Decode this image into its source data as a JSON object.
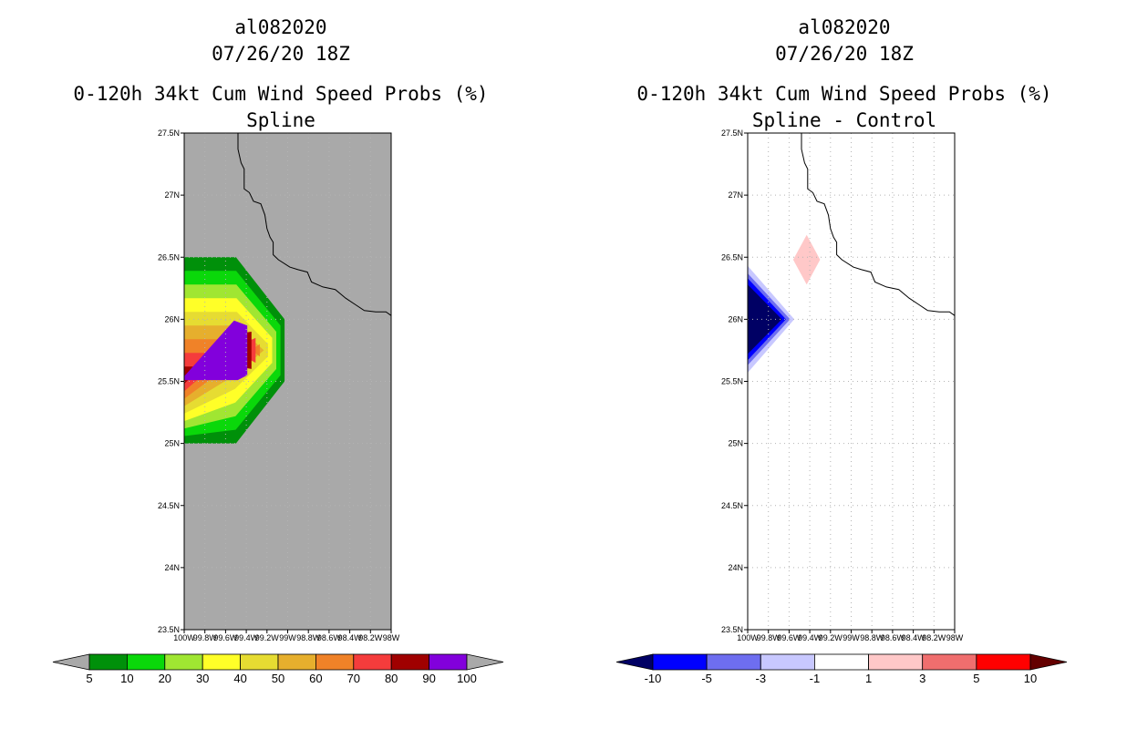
{
  "chart_data": [
    {
      "type": "heatmap",
      "panel": "left",
      "title_lines": [
        "al082020",
        "07/26/20 18Z",
        "0-120h 34kt Cum Wind Speed Probs (%)",
        "Spline"
      ],
      "xlim": [
        -100.0,
        -98.0
      ],
      "ylim": [
        23.5,
        27.5
      ],
      "x_tick_labels": [
        "100W",
        "99.8W",
        "99.6W",
        "99.4W",
        "99.2W",
        "99W",
        "98.8W",
        "98.6W",
        "98.4W",
        "98.2W",
        "98W"
      ],
      "y_tick_labels": [
        "23.5N",
        "24N",
        "24.5N",
        "25N",
        "25.5N",
        "26N",
        "26.5N",
        "27N",
        "27.5N"
      ],
      "background_color": "#a9a9a9",
      "grid": true,
      "colorbar": {
        "labels": [
          "5",
          "10",
          "20",
          "30",
          "40",
          "50",
          "60",
          "70",
          "80",
          "90",
          "100"
        ],
        "colors": [
          "#a9a9a9",
          "#00900a",
          "#0ad80a",
          "#a0e632",
          "#ffff28",
          "#e6dc32",
          "#e6af2d",
          "#f08228",
          "#f53c3c",
          "#a00000",
          "#8200dc",
          "#a9a9a9"
        ]
      },
      "field": {
        "outer_corners_lon_lat": [
          [
            -100.0,
            26.5
          ],
          [
            -99.5,
            26.5
          ],
          [
            -99.03,
            26.0
          ],
          [
            -99.03,
            25.5
          ],
          [
            -99.5,
            25.0
          ],
          [
            -100.0,
            25.0
          ]
        ],
        "inner_corners_lon_lat": [
          [
            -100.0,
            25.4
          ],
          [
            -99.48,
            25.4
          ],
          [
            -99.43,
            25.5
          ],
          [
            -99.43,
            26.0
          ],
          [
            -99.52,
            26.1
          ],
          [
            -100.0,
            25.6
          ]
        ],
        "levels": [
          10,
          20,
          30,
          40,
          50,
          60,
          70,
          80,
          90,
          100
        ]
      }
    },
    {
      "type": "heatmap",
      "panel": "right",
      "title_lines": [
        "al082020",
        "07/26/20 18Z",
        "0-120h 34kt Cum Wind Speed Probs (%)",
        "Spline - Control"
      ],
      "xlim": [
        -100.0,
        -98.0
      ],
      "ylim": [
        23.5,
        27.5
      ],
      "x_tick_labels": [
        "100W",
        "99.8W",
        "99.6W",
        "99.4W",
        "99.2W",
        "99W",
        "98.8W",
        "98.6W",
        "98.4W",
        "98.2W",
        "98W"
      ],
      "y_tick_labels": [
        "23.5N",
        "24N",
        "24.5N",
        "25N",
        "25.5N",
        "26N",
        "26.5N",
        "27N",
        "27.5N"
      ],
      "background_color": "#ffffff",
      "grid": true,
      "colorbar": {
        "labels": [
          "-10",
          "-5",
          "-3",
          "-1",
          "1",
          "3",
          "5",
          "10"
        ],
        "colors": [
          "#000064",
          "#0000ff",
          "#6e6ef0",
          "#c8c8ff",
          "#ffffff",
          "#ffc8c8",
          "#f06e6e",
          "#ff0000",
          "#640000"
        ]
      },
      "negative_wedge": {
        "apex_lon_lat": [
          -99.55,
          26.0
        ],
        "half_height_deg": [
          0.43,
          0.37,
          0.33,
          0.28
        ],
        "colors": [
          "#c8c8ff",
          "#6e6ef0",
          "#0000ff",
          "#000064"
        ]
      },
      "positive_diamond": {
        "center_lon_lat": [
          -99.43,
          26.48
        ],
        "half_width_deg": 0.13,
        "half_height_deg": 0.2,
        "color": "#ffc8c8"
      }
    }
  ],
  "coastline_lon_lat": [
    [
      -99.48,
      27.5
    ],
    [
      -99.48,
      27.37
    ],
    [
      -99.45,
      27.26
    ],
    [
      -99.42,
      27.21
    ],
    [
      -99.42,
      27.05
    ],
    [
      -99.37,
      27.02
    ],
    [
      -99.33,
      26.95
    ],
    [
      -99.26,
      26.93
    ],
    [
      -99.22,
      26.84
    ],
    [
      -99.2,
      26.73
    ],
    [
      -99.17,
      26.66
    ],
    [
      -99.14,
      26.62
    ],
    [
      -99.14,
      26.52
    ],
    [
      -99.09,
      26.48
    ],
    [
      -98.98,
      26.42
    ],
    [
      -98.9,
      26.4
    ],
    [
      -98.81,
      26.38
    ],
    [
      -98.77,
      26.3
    ],
    [
      -98.66,
      26.26
    ],
    [
      -98.54,
      26.24
    ],
    [
      -98.44,
      26.17
    ],
    [
      -98.35,
      26.12
    ],
    [
      -98.26,
      26.07
    ],
    [
      -98.15,
      26.06
    ],
    [
      -98.05,
      26.06
    ],
    [
      -98.0,
      26.03
    ]
  ],
  "colors": {
    "frame": "#000000",
    "grid": "#b4b4b4",
    "text": "#000000"
  }
}
